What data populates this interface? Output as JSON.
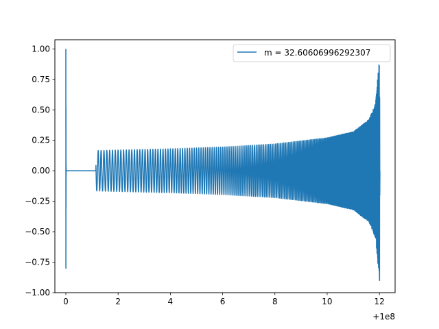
{
  "chart_data": {
    "type": "line",
    "title": "",
    "xlabel": "",
    "ylabel": "",
    "x_offset_label": "+1e8",
    "xlim": [
      -0.42,
      12.6
    ],
    "ylim": [
      -1.0,
      1.075
    ],
    "xticks": [
      0,
      2,
      4,
      6,
      8,
      10,
      12
    ],
    "xtick_labels": [
      "0",
      "2",
      "4",
      "6",
      "8",
      "10",
      "12"
    ],
    "yticks": [
      -1.0,
      -0.75,
      -0.5,
      -0.25,
      0.0,
      0.25,
      0.5,
      0.75,
      1.0
    ],
    "ytick_labels": [
      "−1.00",
      "−0.75",
      "−0.50",
      "−0.25",
      "0.00",
      "0.25",
      "0.50",
      "0.75",
      "1.00"
    ],
    "grid": false,
    "legend_position": "top-right",
    "series": [
      {
        "name": "m = 32.60606996292307",
        "color": "#1f77b4",
        "description_points": {
          "x": [
            0.0,
            0.0,
            0.0,
            0.0,
            0.05,
            1.1,
            1.15,
            2.0,
            4.0,
            6.0,
            8.0,
            10.0,
            11.0,
            11.6,
            11.85,
            11.93,
            11.97,
            12.0
          ],
          "envelope": [
            1.0,
            -0.8,
            0.52,
            -0.3,
            0.0,
            0.0,
            0.165,
            0.17,
            0.18,
            0.195,
            0.22,
            0.27,
            0.32,
            0.42,
            0.55,
            0.75,
            0.85,
            0.9
          ]
        }
      }
    ]
  }
}
